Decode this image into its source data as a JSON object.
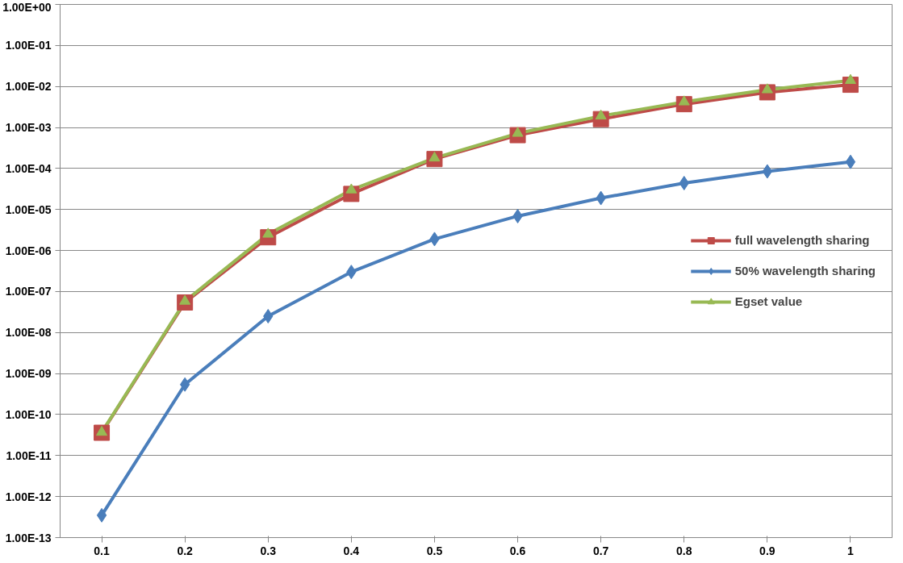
{
  "chart_data": {
    "type": "line",
    "log": "y",
    "grid": "y",
    "legend": "right",
    "categories": [
      "0.1",
      "0.2",
      "0.3",
      "0.4",
      "0.5",
      "0.6",
      "0.7",
      "0.8",
      "0.9",
      "1"
    ],
    "ylim": [
      1e-13,
      1
    ],
    "yticks": [
      {
        "value": 1,
        "label": "1.00E+00"
      },
      {
        "value": 0.1,
        "label": "1.00E-01"
      },
      {
        "value": 0.01,
        "label": "1.00E-02"
      },
      {
        "value": 0.001,
        "label": "1.00E-03"
      },
      {
        "value": 0.0001,
        "label": "1.00E-04"
      },
      {
        "value": 1e-05,
        "label": "1.00E-05"
      },
      {
        "value": 1e-06,
        "label": "1.00E-06"
      },
      {
        "value": 1e-07,
        "label": "1.00E-07"
      },
      {
        "value": 1e-08,
        "label": "1.00E-08"
      },
      {
        "value": 1e-09,
        "label": "1.00E-09"
      },
      {
        "value": 1e-10,
        "label": "1.00E-10"
      },
      {
        "value": 1e-11,
        "label": "1.00E-11"
      },
      {
        "value": 1e-12,
        "label": "1.00E-12"
      },
      {
        "value": 1e-13,
        "label": "1.00E-13"
      }
    ],
    "series": [
      {
        "name": "full wavelength sharing",
        "color": "#be4b48",
        "marker": "square",
        "values": [
          3.6e-11,
          5.4e-08,
          2.1e-06,
          2.4e-05,
          0.00017,
          0.00065,
          0.0016,
          0.0037,
          0.0072,
          0.011
        ]
      },
      {
        "name": "50% wavelength sharing",
        "color": "#4a7ebb",
        "marker": "diamond",
        "values": [
          3.5e-13,
          5.4e-10,
          2.5e-08,
          3e-07,
          1.9e-06,
          6.9e-06,
          1.9e-05,
          4.4e-05,
          8.5e-05,
          0.000145
        ]
      },
      {
        "name": "Egset value",
        "color": "#98b954",
        "marker": "triangle",
        "values": [
          3.7e-11,
          5.8e-08,
          2.5e-06,
          3e-05,
          0.00018,
          0.00072,
          0.0019,
          0.0042,
          0.0083,
          0.014
        ]
      }
    ]
  }
}
